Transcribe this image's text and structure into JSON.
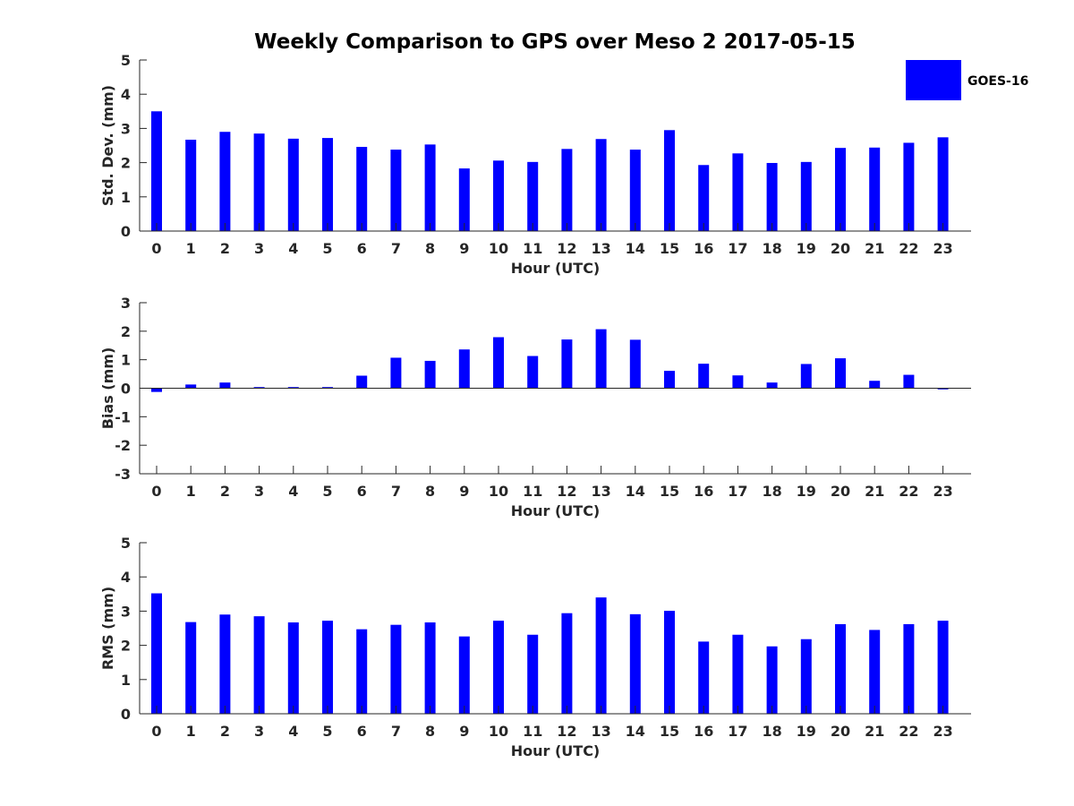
{
  "chart_data": {
    "title": "Weekly Comparison to GPS over Meso 2 2017-05-15",
    "legend": {
      "label": "GOES-16",
      "color": "#0000ff",
      "placement": "top-right"
    },
    "bar_color": "#0000ff",
    "panels": [
      {
        "type": "bar",
        "ylabel": "Std. Dev. (mm)",
        "xlabel": "Hour (UTC)",
        "ylim": [
          0,
          5
        ],
        "yticks": [
          0,
          1,
          2,
          3,
          4,
          5
        ],
        "categories": [
          "0",
          "1",
          "2",
          "3",
          "4",
          "5",
          "6",
          "7",
          "8",
          "9",
          "10",
          "11",
          "12",
          "13",
          "14",
          "15",
          "16",
          "17",
          "18",
          "19",
          "20",
          "21",
          "22",
          "23"
        ],
        "values": [
          3.5,
          2.67,
          2.9,
          2.85,
          2.7,
          2.72,
          2.46,
          2.38,
          2.53,
          1.83,
          2.06,
          2.02,
          2.4,
          2.69,
          2.38,
          2.95,
          1.93,
          2.27,
          1.99,
          2.02,
          2.43,
          2.44,
          2.58,
          2.74
        ]
      },
      {
        "type": "bar",
        "ylabel": "Bias (mm)",
        "xlabel": "Hour (UTC)",
        "ylim": [
          -3,
          3
        ],
        "yticks": [
          -3,
          -2,
          -1,
          0,
          1,
          2,
          3
        ],
        "categories": [
          "0",
          "1",
          "2",
          "3",
          "4",
          "5",
          "6",
          "7",
          "8",
          "9",
          "10",
          "11",
          "12",
          "13",
          "14",
          "15",
          "16",
          "17",
          "18",
          "19",
          "20",
          "21",
          "22",
          "23"
        ],
        "values": [
          -0.13,
          0.13,
          0.2,
          0.04,
          0.04,
          0.04,
          0.44,
          1.07,
          0.96,
          1.36,
          1.79,
          1.13,
          1.71,
          2.07,
          1.7,
          0.61,
          0.86,
          0.45,
          0.2,
          0.85,
          1.05,
          0.26,
          0.47,
          -0.04
        ]
      },
      {
        "type": "bar",
        "ylabel": "RMS (mm)",
        "xlabel": "Hour (UTC)",
        "ylim": [
          0,
          5
        ],
        "yticks": [
          0,
          1,
          2,
          3,
          4,
          5
        ],
        "categories": [
          "0",
          "1",
          "2",
          "3",
          "4",
          "5",
          "6",
          "7",
          "8",
          "9",
          "10",
          "11",
          "12",
          "13",
          "14",
          "15",
          "16",
          "17",
          "18",
          "19",
          "20",
          "21",
          "22",
          "23"
        ],
        "values": [
          3.52,
          2.68,
          2.9,
          2.85,
          2.67,
          2.72,
          2.47,
          2.6,
          2.67,
          2.26,
          2.72,
          2.31,
          2.94,
          3.4,
          2.91,
          3.01,
          2.11,
          2.31,
          1.97,
          2.18,
          2.62,
          2.45,
          2.62,
          2.72
        ]
      }
    ]
  }
}
